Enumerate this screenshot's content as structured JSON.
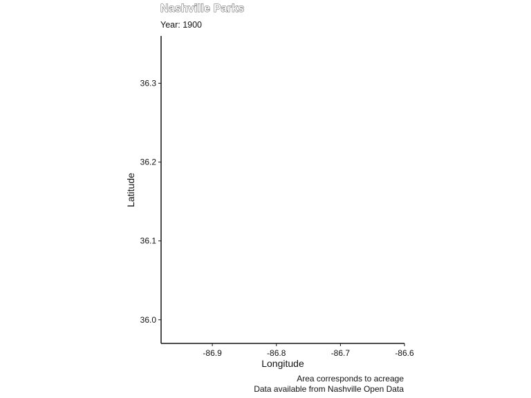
{
  "chart_data": {
    "type": "scatter",
    "title": "Nashville Parks",
    "subtitle": "Year: 1900",
    "xlabel": "Longitude",
    "ylabel": "Latitude",
    "xlim": [
      -86.98,
      -86.6
    ],
    "ylim": [
      35.97,
      36.36
    ],
    "x_ticks": [
      -86.9,
      -86.8,
      -86.7,
      -86.6
    ],
    "x_tick_labels": [
      "-86.9",
      "-86.8",
      "-86.7",
      "-86.6"
    ],
    "y_ticks": [
      36.0,
      36.1,
      36.2,
      36.3
    ],
    "y_tick_labels": [
      "36.0",
      "36.1",
      "36.2",
      "36.3"
    ],
    "points": [],
    "grid": false,
    "legend": "none",
    "caption": [
      "Area corresponds to acreage",
      "Data available from Nashville Open Data"
    ]
  }
}
